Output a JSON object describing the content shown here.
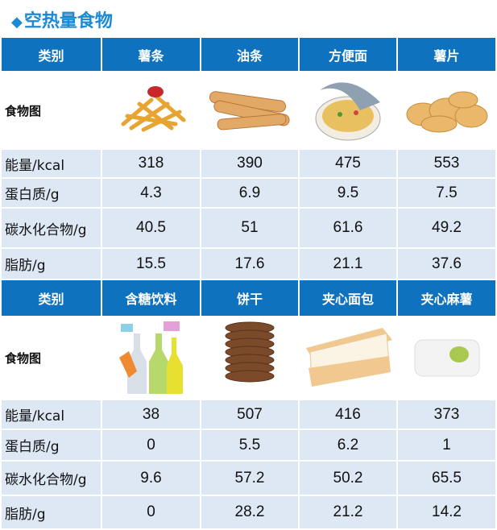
{
  "title": "空热量食物",
  "title_icon": "diamond-icon",
  "colors": {
    "header": "#0e72bf",
    "row": "#dde8f4",
    "title": "#1a8ad4"
  },
  "sections": [
    {
      "header": [
        "类别",
        "薯条",
        "油条",
        "方便面",
        "薯片"
      ],
      "image_label": "食物图",
      "images": [
        "french-fries",
        "youtiao",
        "instant-noodles",
        "potato-chips"
      ],
      "rows": [
        {
          "label": "能量/kcal",
          "values": [
            "318",
            "390",
            "475",
            "553"
          ]
        },
        {
          "label": "蛋白质/g",
          "values": [
            "4.3",
            "6.9",
            "9.5",
            "7.5"
          ]
        },
        {
          "label": "碳水化合物/g",
          "values": [
            "40.5",
            "51",
            "61.6",
            "49.2"
          ]
        },
        {
          "label": "脂肪/g",
          "values": [
            "15.5",
            "17.6",
            "21.1",
            "37.6"
          ]
        }
      ]
    },
    {
      "header": [
        "类别",
        "含糖饮料",
        "饼干",
        "夹心面包",
        "夹心麻薯"
      ],
      "image_label": "食物图",
      "images": [
        "sugary-drinks",
        "cookies",
        "sandwich-bread",
        "filled-mochi"
      ],
      "rows": [
        {
          "label": "能量/kcal",
          "values": [
            "38",
            "507",
            "416",
            "373"
          ]
        },
        {
          "label": "蛋白质/g",
          "values": [
            "0",
            "5.5",
            "6.2",
            "1"
          ]
        },
        {
          "label": "碳水化合物/g",
          "values": [
            "9.6",
            "57.2",
            "50.2",
            "65.5"
          ]
        },
        {
          "label": "脂肪/g",
          "values": [
            "0",
            "28.2",
            "21.2",
            "14.2"
          ]
        }
      ]
    }
  ]
}
